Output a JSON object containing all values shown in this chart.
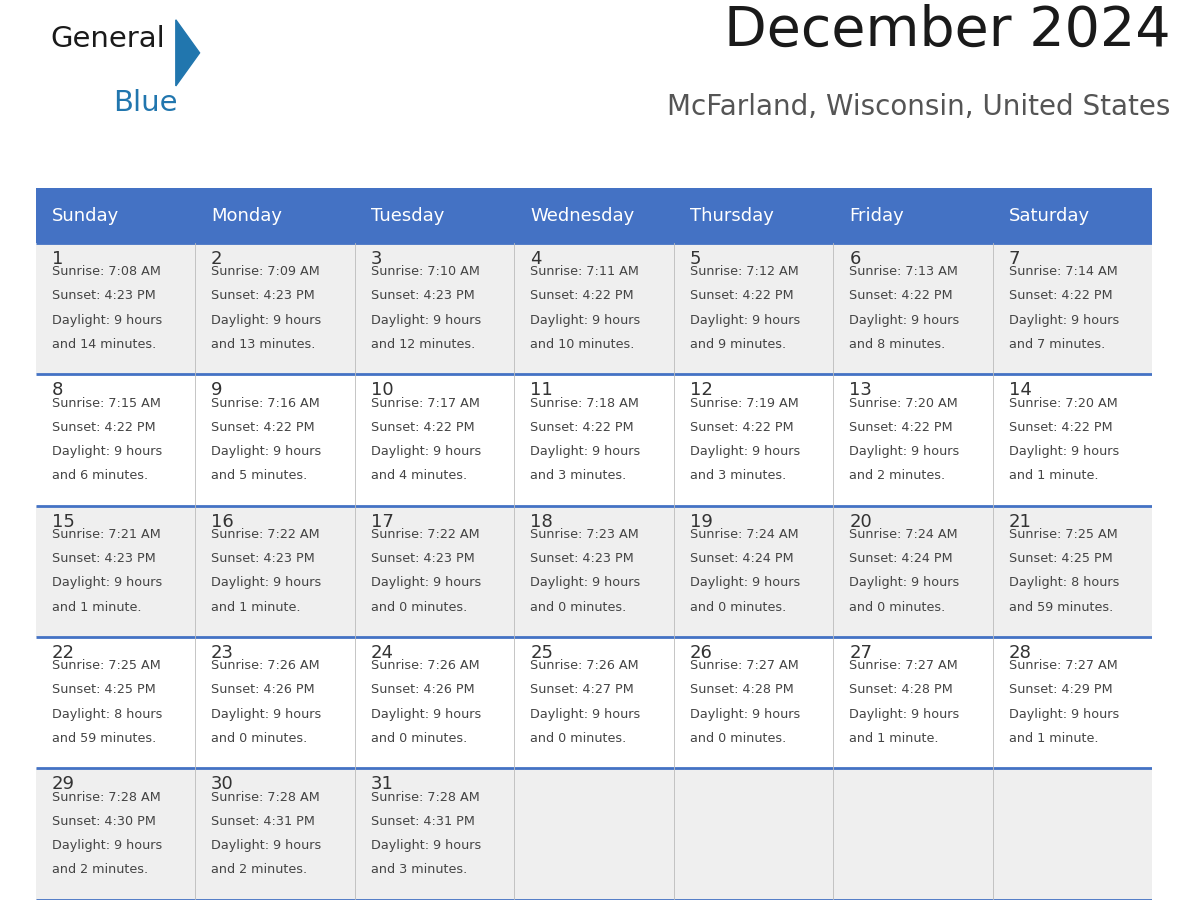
{
  "title": "December 2024",
  "subtitle": "McFarland, Wisconsin, United States",
  "header_bg_color": "#4472C4",
  "header_text_color": "#FFFFFF",
  "day_names": [
    "Sunday",
    "Monday",
    "Tuesday",
    "Wednesday",
    "Thursday",
    "Friday",
    "Saturday"
  ],
  "row_bg_even": "#EFEFEF",
  "row_bg_odd": "#FFFFFF",
  "grid_line_color": "#4472C4",
  "day_num_color": "#333333",
  "info_text_color": "#444444",
  "calendar": [
    [
      {
        "day": 1,
        "sunrise": "7:08 AM",
        "sunset": "4:23 PM",
        "daylight": "9 hours and 14 minutes."
      },
      {
        "day": 2,
        "sunrise": "7:09 AM",
        "sunset": "4:23 PM",
        "daylight": "9 hours and 13 minutes."
      },
      {
        "day": 3,
        "sunrise": "7:10 AM",
        "sunset": "4:23 PM",
        "daylight": "9 hours and 12 minutes."
      },
      {
        "day": 4,
        "sunrise": "7:11 AM",
        "sunset": "4:22 PM",
        "daylight": "9 hours and 10 minutes."
      },
      {
        "day": 5,
        "sunrise": "7:12 AM",
        "sunset": "4:22 PM",
        "daylight": "9 hours and 9 minutes."
      },
      {
        "day": 6,
        "sunrise": "7:13 AM",
        "sunset": "4:22 PM",
        "daylight": "9 hours and 8 minutes."
      },
      {
        "day": 7,
        "sunrise": "7:14 AM",
        "sunset": "4:22 PM",
        "daylight": "9 hours and 7 minutes."
      }
    ],
    [
      {
        "day": 8,
        "sunrise": "7:15 AM",
        "sunset": "4:22 PM",
        "daylight": "9 hours and 6 minutes."
      },
      {
        "day": 9,
        "sunrise": "7:16 AM",
        "sunset": "4:22 PM",
        "daylight": "9 hours and 5 minutes."
      },
      {
        "day": 10,
        "sunrise": "7:17 AM",
        "sunset": "4:22 PM",
        "daylight": "9 hours and 4 minutes."
      },
      {
        "day": 11,
        "sunrise": "7:18 AM",
        "sunset": "4:22 PM",
        "daylight": "9 hours and 3 minutes."
      },
      {
        "day": 12,
        "sunrise": "7:19 AM",
        "sunset": "4:22 PM",
        "daylight": "9 hours and 3 minutes."
      },
      {
        "day": 13,
        "sunrise": "7:20 AM",
        "sunset": "4:22 PM",
        "daylight": "9 hours and 2 minutes."
      },
      {
        "day": 14,
        "sunrise": "7:20 AM",
        "sunset": "4:22 PM",
        "daylight": "9 hours and 1 minute."
      }
    ],
    [
      {
        "day": 15,
        "sunrise": "7:21 AM",
        "sunset": "4:23 PM",
        "daylight": "9 hours and 1 minute."
      },
      {
        "day": 16,
        "sunrise": "7:22 AM",
        "sunset": "4:23 PM",
        "daylight": "9 hours and 1 minute."
      },
      {
        "day": 17,
        "sunrise": "7:22 AM",
        "sunset": "4:23 PM",
        "daylight": "9 hours and 0 minutes."
      },
      {
        "day": 18,
        "sunrise": "7:23 AM",
        "sunset": "4:23 PM",
        "daylight": "9 hours and 0 minutes."
      },
      {
        "day": 19,
        "sunrise": "7:24 AM",
        "sunset": "4:24 PM",
        "daylight": "9 hours and 0 minutes."
      },
      {
        "day": 20,
        "sunrise": "7:24 AM",
        "sunset": "4:24 PM",
        "daylight": "9 hours and 0 minutes."
      },
      {
        "day": 21,
        "sunrise": "7:25 AM",
        "sunset": "4:25 PM",
        "daylight": "8 hours and 59 minutes."
      }
    ],
    [
      {
        "day": 22,
        "sunrise": "7:25 AM",
        "sunset": "4:25 PM",
        "daylight": "8 hours and 59 minutes."
      },
      {
        "day": 23,
        "sunrise": "7:26 AM",
        "sunset": "4:26 PM",
        "daylight": "9 hours and 0 minutes."
      },
      {
        "day": 24,
        "sunrise": "7:26 AM",
        "sunset": "4:26 PM",
        "daylight": "9 hours and 0 minutes."
      },
      {
        "day": 25,
        "sunrise": "7:26 AM",
        "sunset": "4:27 PM",
        "daylight": "9 hours and 0 minutes."
      },
      {
        "day": 26,
        "sunrise": "7:27 AM",
        "sunset": "4:28 PM",
        "daylight": "9 hours and 0 minutes."
      },
      {
        "day": 27,
        "sunrise": "7:27 AM",
        "sunset": "4:28 PM",
        "daylight": "9 hours and 1 minute."
      },
      {
        "day": 28,
        "sunrise": "7:27 AM",
        "sunset": "4:29 PM",
        "daylight": "9 hours and 1 minute."
      }
    ],
    [
      {
        "day": 29,
        "sunrise": "7:28 AM",
        "sunset": "4:30 PM",
        "daylight": "9 hours and 2 minutes."
      },
      {
        "day": 30,
        "sunrise": "7:28 AM",
        "sunset": "4:31 PM",
        "daylight": "9 hours and 2 minutes."
      },
      {
        "day": 31,
        "sunrise": "7:28 AM",
        "sunset": "4:31 PM",
        "daylight": "9 hours and 3 minutes."
      },
      null,
      null,
      null,
      null
    ]
  ],
  "logo_general_color": "#1a1a1a",
  "logo_blue_color": "#2176AE",
  "logo_triangle_color": "#2176AE",
  "title_color": "#1a1a1a",
  "subtitle_color": "#555555"
}
